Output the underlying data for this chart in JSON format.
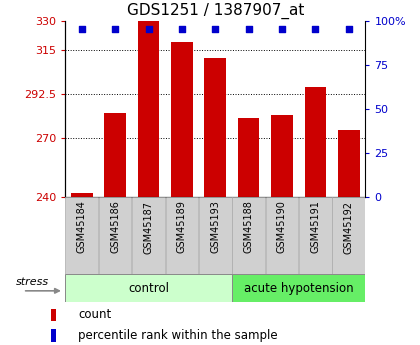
{
  "title": "GDS1251 / 1387907_at",
  "samples": [
    "GSM45184",
    "GSM45186",
    "GSM45187",
    "GSM45189",
    "GSM45193",
    "GSM45188",
    "GSM45190",
    "GSM45191",
    "GSM45192"
  ],
  "counts": [
    242,
    283,
    330,
    319,
    311,
    280,
    282,
    296,
    274
  ],
  "percentiles": [
    95,
    95,
    95,
    95,
    95,
    95,
    95,
    95,
    95
  ],
  "ylim_left": [
    240,
    330
  ],
  "ylim_right": [
    0,
    100
  ],
  "yticks_left": [
    240,
    270,
    292.5,
    315,
    330
  ],
  "ytick_labels_left": [
    "240",
    "270",
    "292.5",
    "315",
    "330"
  ],
  "yticks_right": [
    0,
    25,
    50,
    75,
    100
  ],
  "ytick_labels_right": [
    "0",
    "25",
    "50",
    "75",
    "100%"
  ],
  "grid_values": [
    270,
    292.5,
    315
  ],
  "bar_color": "#cc0000",
  "dot_color": "#0000cc",
  "bar_width": 0.65,
  "groups": [
    {
      "label": "control",
      "start": 0,
      "end": 4,
      "color": "#ccffcc"
    },
    {
      "label": "acute hypotension",
      "start": 5,
      "end": 8,
      "color": "#66ee66"
    }
  ],
  "stress_label": "stress",
  "legend_count_label": "count",
  "legend_percentile_label": "percentile rank within the sample",
  "title_fontsize": 11,
  "tick_fontsize": 8,
  "label_color_left": "#cc0000",
  "label_color_right": "#0000cc",
  "bg_color": "#ffffff",
  "sample_box_color": "#d0d0d0",
  "sample_box_border": "#aaaaaa"
}
